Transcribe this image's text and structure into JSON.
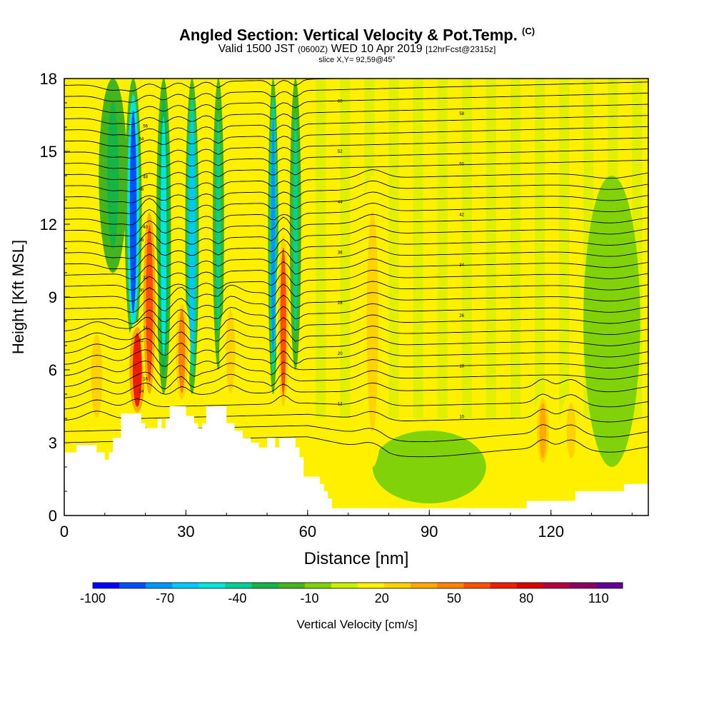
{
  "header": {
    "title": "Angled Section: Vertical Velocity & Pot.Temp.",
    "copyright": "(C)",
    "valid_prefix": "Valid 1500 JST",
    "valid_utc": "(0600Z)",
    "valid_date": "WED 10 Apr 2019",
    "forecast_tag": "[12hrFcst@2315z]",
    "slice": "slice X,Y= 92,59@45°"
  },
  "chart_data": {
    "type": "heatmap",
    "xlabel": "Distance [nm]",
    "ylabel": "Height [Kft MSL]",
    "xlim": [
      0,
      144
    ],
    "ylim": [
      0,
      18
    ],
    "xticks": [
      0,
      30,
      60,
      90,
      120
    ],
    "xtick_labels": [
      "0",
      "30",
      "60",
      "90",
      "120"
    ],
    "yticks": [
      0,
      3,
      6,
      9,
      12,
      15,
      18
    ],
    "ytick_labels": [
      "0",
      "3",
      "6",
      "9",
      "12",
      "15",
      "18"
    ],
    "colorbar": {
      "label": "Vertical Velocity [cm/s]",
      "min": -100,
      "max": 120,
      "tick_values": [
        -100,
        -70,
        -40,
        -10,
        20,
        50,
        80,
        110
      ],
      "tick_labels": [
        "-100",
        "-70",
        "-40",
        "-10",
        "20",
        "50",
        "80",
        "110"
      ],
      "colors": [
        "#0000ff",
        "#0050ff",
        "#0096ff",
        "#00c8ff",
        "#00e6dc",
        "#00d296",
        "#14b446",
        "#46b41e",
        "#82d20a",
        "#c8f000",
        "#fff000",
        "#ffd200",
        "#ffaa00",
        "#ff8200",
        "#ff5000",
        "#f01e00",
        "#dc0000",
        "#b4003c",
        "#8c0064",
        "#640096"
      ]
    },
    "background_value": 10,
    "updrafts": [
      {
        "x": 8,
        "w": 2.5,
        "bottom": 3.5,
        "top": 8,
        "value": 30
      },
      {
        "x": 18,
        "w": 2.0,
        "bottom": 4.0,
        "top": 8,
        "value": 75
      },
      {
        "x": 21,
        "w": 1.5,
        "bottom": 4.5,
        "top": 13,
        "value": 60
      },
      {
        "x": 29,
        "w": 1.5,
        "bottom": 4.5,
        "top": 9,
        "value": 45
      },
      {
        "x": 41,
        "w": 2.0,
        "bottom": 4.5,
        "top": 9,
        "value": 30
      },
      {
        "x": 54,
        "w": 1.3,
        "bottom": 4.0,
        "top": 12,
        "value": 55
      },
      {
        "x": 76,
        "w": 2.5,
        "bottom": 2.0,
        "top": 14,
        "value": 22
      },
      {
        "x": 118,
        "w": 1.5,
        "bottom": 2.0,
        "top": 5,
        "value": 40
      },
      {
        "x": 125,
        "w": 2.0,
        "bottom": 2.0,
        "top": 5,
        "value": 30
      }
    ],
    "downdrafts": [
      {
        "x": 17,
        "w": 1.5,
        "bottom": 7,
        "top": 18,
        "value": -85
      },
      {
        "x": 24.5,
        "w": 1.3,
        "bottom": 5,
        "top": 18,
        "value": -55
      },
      {
        "x": 31.5,
        "w": 1.2,
        "bottom": 5,
        "top": 18,
        "value": -65
      },
      {
        "x": 38,
        "w": 1.0,
        "bottom": 6,
        "top": 18,
        "value": -40
      },
      {
        "x": 51.5,
        "w": 0.9,
        "bottom": 5,
        "top": 18,
        "value": -75
      },
      {
        "x": 57,
        "w": 1.0,
        "bottom": 6,
        "top": 18,
        "value": -35
      },
      {
        "x": 12,
        "w": 2.5,
        "bottom": 10,
        "top": 18,
        "value": -25
      },
      {
        "x": 90,
        "w": 10,
        "bottom": 0.5,
        "top": 3.5,
        "value": -8
      },
      {
        "x": 135,
        "w": 5,
        "bottom": 2,
        "top": 14,
        "value": -8
      }
    ],
    "terrain": [
      [
        0,
        2.6
      ],
      [
        3,
        2.6
      ],
      [
        3,
        2.9
      ],
      [
        8,
        2.9
      ],
      [
        8,
        2.6
      ],
      [
        10,
        2.6
      ],
      [
        10,
        2.3
      ],
      [
        11,
        2.3
      ],
      [
        11,
        2.6
      ],
      [
        12,
        2.6
      ],
      [
        12,
        3.2
      ],
      [
        14,
        3.2
      ],
      [
        14,
        4.2
      ],
      [
        19,
        4.2
      ],
      [
        19,
        3.8
      ],
      [
        20,
        3.8
      ],
      [
        20,
        3.6
      ],
      [
        23,
        3.6
      ],
      [
        23,
        4.0
      ],
      [
        24,
        4.0
      ],
      [
        24,
        3.6
      ],
      [
        25,
        3.6
      ],
      [
        25,
        4.0
      ],
      [
        26,
        4.0
      ],
      [
        26,
        4.5
      ],
      [
        30,
        4.5
      ],
      [
        30,
        4.1
      ],
      [
        32,
        4.1
      ],
      [
        32,
        3.8
      ],
      [
        33,
        3.8
      ],
      [
        33,
        3.6
      ],
      [
        34,
        3.6
      ],
      [
        34,
        3.8
      ],
      [
        35,
        3.8
      ],
      [
        35,
        4.5
      ],
      [
        40,
        4.5
      ],
      [
        40,
        3.8
      ],
      [
        42,
        3.8
      ],
      [
        42,
        3.5
      ],
      [
        44,
        3.5
      ],
      [
        44,
        3.2
      ],
      [
        46,
        3.2
      ],
      [
        46,
        3.0
      ],
      [
        48,
        3.0
      ],
      [
        48,
        2.8
      ],
      [
        50,
        2.8
      ],
      [
        50,
        3.2
      ],
      [
        52,
        3.2
      ],
      [
        52,
        2.8
      ],
      [
        53,
        2.8
      ],
      [
        53,
        3.2
      ],
      [
        57,
        3.2
      ],
      [
        57,
        2.8
      ],
      [
        58,
        2.8
      ],
      [
        58,
        2.4
      ],
      [
        59,
        2.4
      ],
      [
        59,
        1.6
      ],
      [
        63,
        1.6
      ],
      [
        63,
        1.3
      ],
      [
        64,
        1.3
      ],
      [
        64,
        1.0
      ],
      [
        65,
        1.0
      ],
      [
        65,
        0.7
      ],
      [
        66,
        0.7
      ],
      [
        66,
        0.3
      ],
      [
        114,
        0.3
      ],
      [
        114,
        0.6
      ],
      [
        126,
        0.6
      ],
      [
        126,
        1.0
      ],
      [
        138,
        1.0
      ],
      [
        138,
        1.3
      ],
      [
        144,
        1.3
      ]
    ],
    "theta_contours": {
      "count": 34,
      "bottom_km": 3.0,
      "spacing": 0.46
    },
    "contour_labels": [
      "8",
      "10",
      "12",
      "14",
      "16",
      "18",
      "20",
      "22",
      "24",
      "26",
      "28",
      "30",
      "32",
      "34",
      "36",
      "38",
      "40",
      "42",
      "44",
      "46",
      "48",
      "50",
      "52",
      "54",
      "56",
      "58",
      "60"
    ]
  }
}
